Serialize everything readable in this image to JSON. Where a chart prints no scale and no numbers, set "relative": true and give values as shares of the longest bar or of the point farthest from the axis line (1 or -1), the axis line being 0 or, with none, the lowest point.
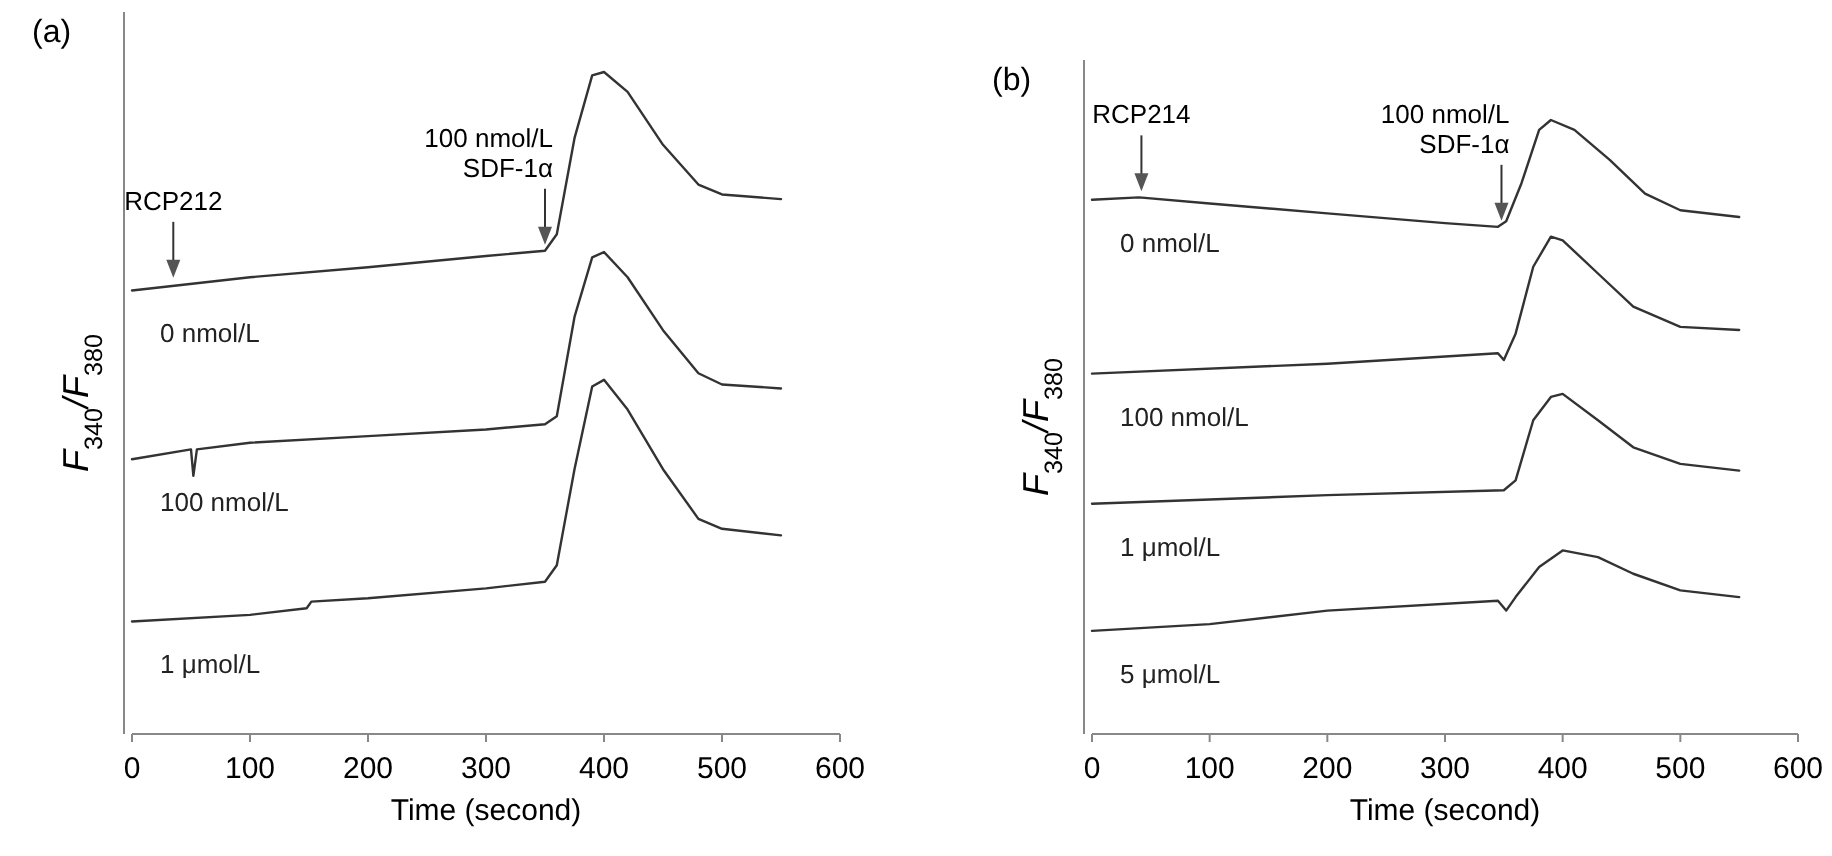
{
  "chart_data": [
    {
      "type": "line",
      "title": "(a)",
      "xlabel": "Time (second)",
      "ylabel": "F$_{340}$/F$_{380}$",
      "relative": true,
      "xlim": [
        0,
        600
      ],
      "xticks": [
        0,
        100,
        200,
        300,
        400,
        500,
        600
      ],
      "annotations": [
        {
          "text": "RCP212",
          "x": 35,
          "y": 0.68
        },
        {
          "text": "100 nmol/L\nSDF-1α",
          "x": 350,
          "y": 0.73
        }
      ],
      "series": [
        {
          "name": "0 nmol/L",
          "color": "#333333",
          "x": [
            0,
            100,
            200,
            300,
            350,
            360,
            375,
            390,
            400,
            420,
            450,
            480,
            500,
            550
          ],
          "values": [
            0.67,
            0.69,
            0.705,
            0.722,
            0.73,
            0.755,
            0.9,
            0.995,
            1.0,
            0.97,
            0.89,
            0.83,
            0.815,
            0.808
          ]
        },
        {
          "name": "100 nmol/L",
          "color": "#333333",
          "x": [
            0,
            50,
            52,
            55,
            100,
            200,
            300,
            350,
            360,
            375,
            390,
            400,
            420,
            450,
            480,
            500,
            550
          ],
          "values": [
            0.415,
            0.43,
            0.39,
            0.43,
            0.44,
            0.45,
            0.46,
            0.468,
            0.48,
            0.63,
            0.72,
            0.728,
            0.69,
            0.61,
            0.545,
            0.528,
            0.522
          ]
        },
        {
          "name": "1 μmol/L",
          "color": "#333333",
          "x": [
            0,
            100,
            148,
            152,
            200,
            300,
            350,
            360,
            375,
            390,
            400,
            420,
            450,
            480,
            500,
            550
          ],
          "values": [
            0.17,
            0.18,
            0.19,
            0.2,
            0.205,
            0.22,
            0.23,
            0.255,
            0.4,
            0.525,
            0.535,
            0.49,
            0.4,
            0.325,
            0.31,
            0.3
          ]
        }
      ]
    },
    {
      "type": "line",
      "title": "(b)",
      "xlabel": "Time (second)",
      "ylabel": "F$_{340}$/F$_{380}$",
      "relative": true,
      "xlim": [
        0,
        600
      ],
      "xticks": [
        0,
        100,
        200,
        300,
        400,
        500,
        600
      ],
      "annotations": [
        {
          "text": "RCP214",
          "x": 42,
          "y": 0.874
        },
        {
          "text": "100 nmol/L\nSDF-1α",
          "x": 348,
          "y": 0.826
        }
      ],
      "series": [
        {
          "name": "0 nmol/L",
          "color": "#333333",
          "x": [
            0,
            40,
            100,
            200,
            300,
            345,
            352,
            365,
            380,
            390,
            410,
            440,
            470,
            500,
            550
          ],
          "values": [
            0.87,
            0.874,
            0.864,
            0.848,
            0.832,
            0.826,
            0.835,
            0.897,
            0.984,
            1.0,
            0.984,
            0.935,
            0.88,
            0.853,
            0.842
          ]
        },
        {
          "name": "100 nmol/L",
          "color": "#333333",
          "x": [
            0,
            200,
            345,
            350,
            360,
            375,
            390,
            400,
            430,
            460,
            500,
            550
          ],
          "values": [
            0.587,
            0.603,
            0.62,
            0.609,
            0.652,
            0.761,
            0.81,
            0.804,
            0.75,
            0.696,
            0.663,
            0.658
          ]
        },
        {
          "name": "1 μmol/L",
          "color": "#333333",
          "x": [
            0,
            200,
            350,
            360,
            375,
            390,
            400,
            430,
            460,
            500,
            550
          ],
          "values": [
            0.375,
            0.389,
            0.397,
            0.413,
            0.511,
            0.549,
            0.554,
            0.511,
            0.467,
            0.44,
            0.429
          ]
        },
        {
          "name": "5 μmol/L",
          "color": "#333333",
          "x": [
            0,
            100,
            200,
            345,
            352,
            360,
            380,
            400,
            430,
            460,
            500,
            550
          ],
          "values": [
            0.168,
            0.179,
            0.201,
            0.217,
            0.201,
            0.223,
            0.272,
            0.299,
            0.288,
            0.261,
            0.234,
            0.223
          ]
        }
      ]
    }
  ]
}
